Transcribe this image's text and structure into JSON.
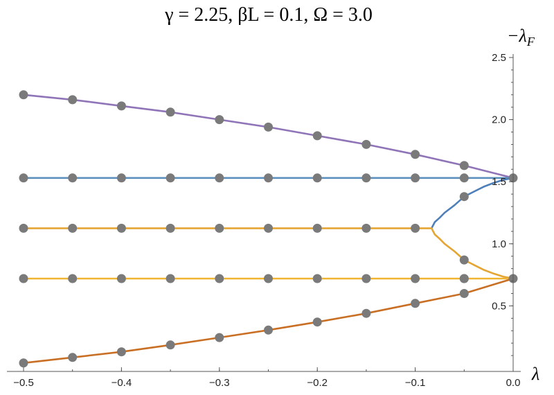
{
  "chart_data": {
    "type": "line",
    "title": "γ = 2.25, βL = 0.1, Ω = 3.0",
    "xlabel": "λ",
    "ylabel": "−λ",
    "ylabel_subscript": "F",
    "xlim": [
      -0.5,
      0.0
    ],
    "ylim": [
      0.0,
      2.5
    ],
    "x_ticks": [
      -0.5,
      -0.4,
      -0.3,
      -0.2,
      -0.1,
      0.0
    ],
    "x_tick_labels": [
      "−0.5",
      "−0.4",
      "−0.3",
      "−0.2",
      "−0.1",
      "0.0"
    ],
    "y_ticks": [
      0.5,
      1.0,
      1.5,
      2.0,
      2.5
    ],
    "y_tick_labels": [
      "0.5",
      "1.0",
      "1.5",
      "2.0",
      "2.5"
    ],
    "grid": false,
    "series": [
      {
        "color": "#8f74b8",
        "x": [
          -0.5,
          -0.45,
          -0.4,
          -0.35,
          -0.3,
          -0.25,
          -0.2,
          -0.15,
          -0.1,
          -0.05,
          -0.025,
          0.0
        ],
        "y": [
          2.2,
          2.16,
          2.11,
          2.06,
          2.0,
          1.94,
          1.87,
          1.8,
          1.72,
          1.63,
          1.58,
          1.53
        ]
      },
      {
        "color": "#5a8fbe",
        "x": [
          -0.5,
          0.0
        ],
        "y": [
          1.53,
          1.53
        ]
      },
      {
        "color": "#4f7fb9",
        "x": [
          -0.0833,
          -0.08,
          -0.075,
          -0.07,
          -0.06,
          -0.05,
          -0.04,
          -0.03,
          -0.02,
          -0.01,
          0.0
        ],
        "y": [
          1.125,
          1.175,
          1.21,
          1.25,
          1.31,
          1.38,
          1.42,
          1.46,
          1.49,
          1.515,
          1.53
        ]
      },
      {
        "color": "#e4a533",
        "x": [
          -0.5,
          -0.0833,
          -0.08,
          -0.075,
          -0.07,
          -0.06,
          -0.05,
          -0.04,
          -0.03,
          -0.02,
          -0.01,
          0.0
        ],
        "y": [
          1.125,
          1.125,
          1.075,
          1.04,
          1.0,
          0.94,
          0.87,
          0.83,
          0.79,
          0.76,
          0.735,
          0.72
        ]
      },
      {
        "color": "#f0b431",
        "x": [
          -0.5,
          0.0
        ],
        "y": [
          0.72,
          0.72
        ]
      },
      {
        "color": "#c96f24",
        "x": [
          -0.5,
          -0.45,
          -0.4,
          -0.35,
          -0.3,
          -0.25,
          -0.2,
          -0.15,
          -0.1,
          -0.05,
          -0.025,
          0.0
        ],
        "y": [
          0.04,
          0.085,
          0.13,
          0.185,
          0.245,
          0.305,
          0.37,
          0.44,
          0.52,
          0.6,
          0.66,
          0.72
        ]
      }
    ],
    "points": {
      "color": "#7a7a7a",
      "x": [
        -0.5,
        -0.45,
        -0.4,
        -0.35,
        -0.3,
        -0.25,
        -0.2,
        -0.15,
        -0.1,
        -0.05,
        0.0,
        -0.5,
        -0.45,
        -0.4,
        -0.35,
        -0.3,
        -0.25,
        -0.2,
        -0.15,
        -0.1,
        -0.05,
        -0.5,
        -0.45,
        -0.4,
        -0.35,
        -0.3,
        -0.25,
        -0.2,
        -0.15,
        -0.1,
        -0.05,
        -0.5,
        -0.45,
        -0.4,
        -0.35,
        -0.3,
        -0.25,
        -0.2,
        -0.15,
        -0.1,
        -0.05,
        0.0,
        -0.5,
        -0.45,
        -0.4,
        -0.35,
        -0.3,
        -0.25,
        -0.2,
        -0.15,
        -0.1,
        -0.05,
        -0.05,
        -0.05
      ],
      "y": [
        2.2,
        2.16,
        2.11,
        2.06,
        2.0,
        1.94,
        1.87,
        1.8,
        1.72,
        1.63,
        1.53,
        1.53,
        1.53,
        1.53,
        1.53,
        1.53,
        1.53,
        1.53,
        1.53,
        1.53,
        1.53,
        1.125,
        1.125,
        1.125,
        1.125,
        1.125,
        1.125,
        1.125,
        1.125,
        1.125,
        1.38,
        0.72,
        0.72,
        0.72,
        0.72,
        0.72,
        0.72,
        0.72,
        0.72,
        0.72,
        0.72,
        0.72,
        0.04,
        0.085,
        0.13,
        0.185,
        0.245,
        0.305,
        0.37,
        0.44,
        0.52,
        0.6,
        0.87,
        0.72
      ]
    }
  }
}
